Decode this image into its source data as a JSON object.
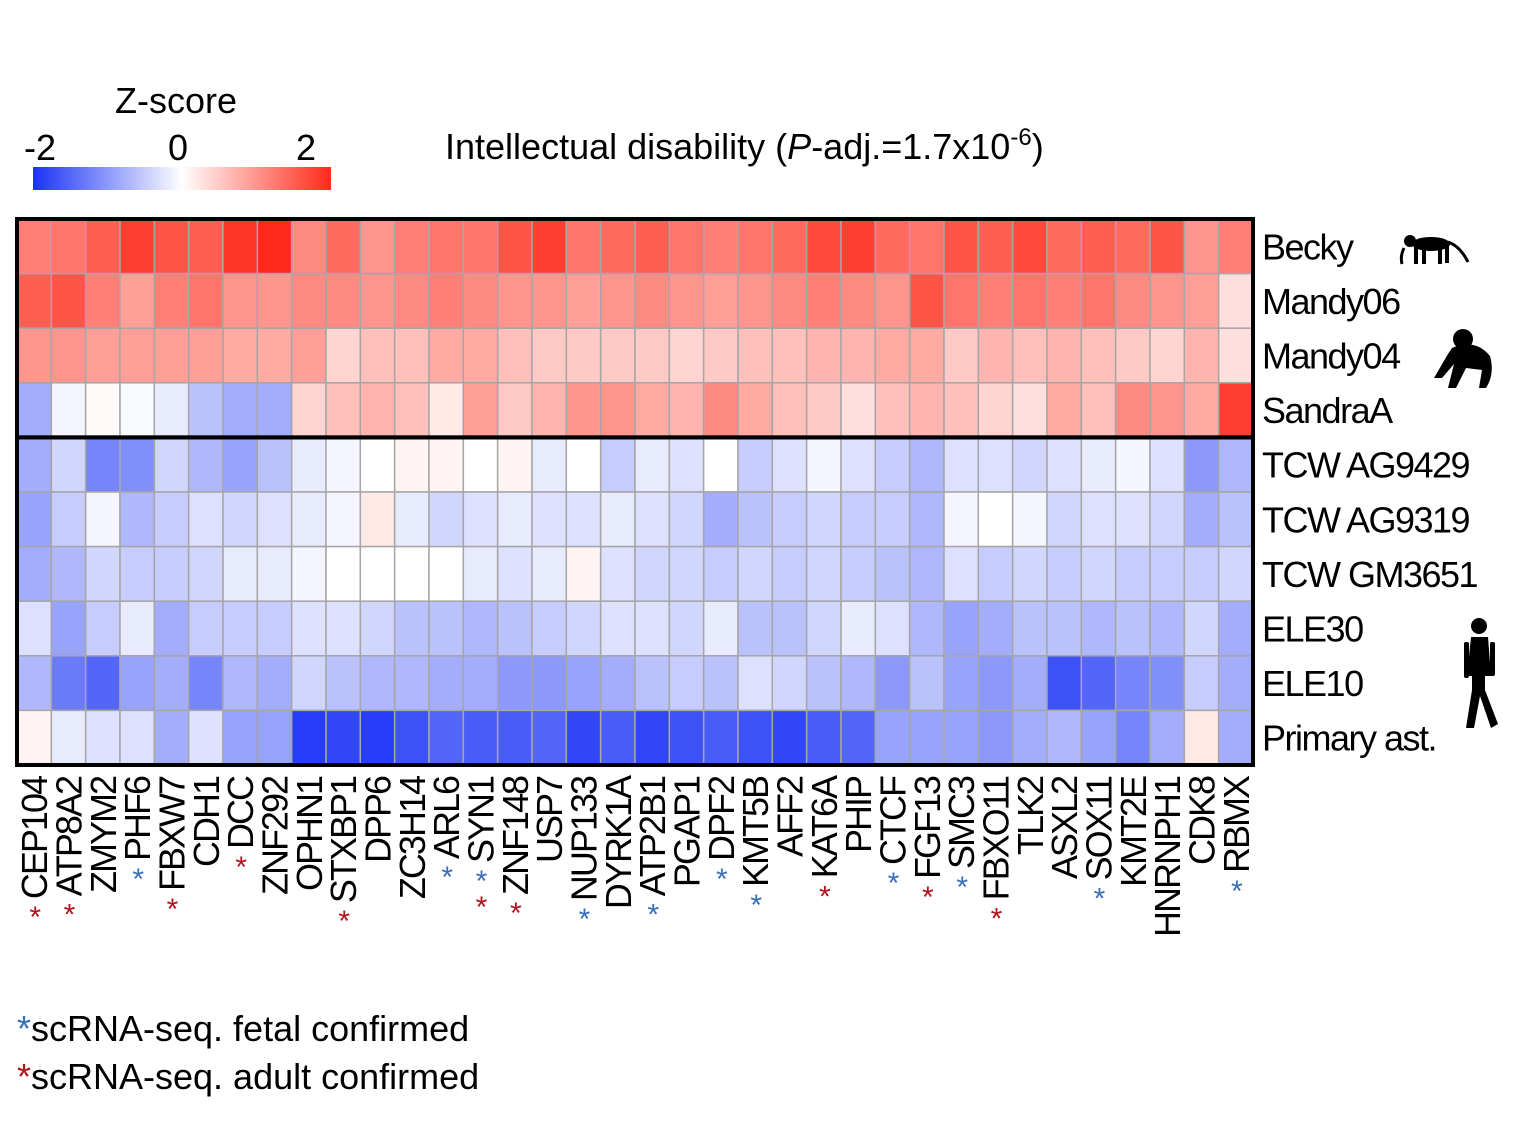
{
  "chart_data": {
    "type": "heatmap",
    "title_prefix": "Intellectual disability (",
    "title_p": "P",
    "title_mid": "-adj.=1.7x10",
    "title_sup": "-6",
    "title_suffix": ")",
    "colorbar": {
      "title": "Z-score",
      "ticks": [
        "-2",
        "0",
        "2"
      ],
      "range": [
        -2,
        2
      ],
      "colors": {
        "low": "#1a33f5",
        "mid": "#ffffff",
        "high": "#ff2a1a"
      }
    },
    "rows": [
      "Becky",
      "Mandy06",
      "Mandy04",
      "SandraA",
      "TCW AG9429",
      "TCW AG9319",
      "TCW GM3651",
      "ELE30",
      "ELE10",
      "Primary ast."
    ],
    "row_groups": [
      {
        "name": "monkey",
        "rows": [
          0,
          0
        ],
        "icon": "monkey-icon"
      },
      {
        "name": "chimpanzee",
        "rows": [
          1,
          3
        ],
        "icon": "chimpanzee-icon"
      },
      {
        "name": "human",
        "rows": [
          4,
          9
        ],
        "icon": "human-icon"
      }
    ],
    "columns": [
      "CEP104",
      "ATP8A2",
      "ZMYM2",
      "PHF6",
      "FBXW7",
      "CDH1",
      "DCC",
      "ZNF292",
      "OPHN1",
      "STXBP1",
      "DPP6",
      "ZC3H14",
      "ARL6",
      "SYN1",
      "ZNF148",
      "USP7",
      "NUP133",
      "DYRK1A",
      "ATP2B1",
      "PGAP1",
      "DPF2",
      "KMT5B",
      "AFF2",
      "KAT6A",
      "PHIP",
      "CTCF",
      "FGF13",
      "SMC3",
      "FBXO11",
      "TLK2",
      "ASXL2",
      "SOX11",
      "KMT2E",
      "HNRNPH1",
      "CDK8",
      "RBMX"
    ],
    "fetal_confirmed": [
      "PHF6",
      "ARL6",
      "SYN1",
      "NUP133",
      "ATP2B1",
      "DPF2",
      "KMT5B",
      "CTCF",
      "SMC3",
      "SOX11",
      "RBMX"
    ],
    "adult_confirmed": [
      "CEP104",
      "ATP8A2",
      "FBXW7",
      "DCC",
      "STXBP1",
      "SYN1",
      "ZNF148",
      "KAT6A",
      "FGF13",
      "FBXO11"
    ],
    "values": [
      [
        1.2,
        1.3,
        1.5,
        1.8,
        1.6,
        1.5,
        1.9,
        2.0,
        1.1,
        1.4,
        1.0,
        1.2,
        1.3,
        1.3,
        1.6,
        1.8,
        1.3,
        1.4,
        1.5,
        1.3,
        1.2,
        1.3,
        1.4,
        1.7,
        1.8,
        1.4,
        1.3,
        1.6,
        1.5,
        1.7,
        1.4,
        1.5,
        1.4,
        1.6,
        1.0,
        1.2
      ],
      [
        1.5,
        1.6,
        1.2,
        0.9,
        1.2,
        1.3,
        1.0,
        1.0,
        1.1,
        1.1,
        1.0,
        1.1,
        1.2,
        1.1,
        1.0,
        1.0,
        0.9,
        1.0,
        1.1,
        1.0,
        0.9,
        1.0,
        1.1,
        1.2,
        1.1,
        1.0,
        1.6,
        1.3,
        1.2,
        1.3,
        1.2,
        1.3,
        1.1,
        1.0,
        0.9,
        0.3
      ],
      [
        1.0,
        1.0,
        0.9,
        0.9,
        0.9,
        0.9,
        0.8,
        0.8,
        0.9,
        0.4,
        0.6,
        0.6,
        0.8,
        0.8,
        0.6,
        0.5,
        0.5,
        0.5,
        0.5,
        0.4,
        0.5,
        0.6,
        0.6,
        0.7,
        0.7,
        0.8,
        0.8,
        0.5,
        0.7,
        0.6,
        0.7,
        0.6,
        0.5,
        0.4,
        0.7,
        0.3
      ],
      [
        -0.8,
        -0.1,
        0.05,
        -0.05,
        -0.2,
        -0.6,
        -0.8,
        -0.8,
        0.4,
        0.6,
        0.7,
        0.6,
        0.2,
        0.9,
        0.5,
        0.7,
        1.0,
        1.0,
        0.8,
        0.7,
        1.1,
        0.8,
        0.6,
        0.5,
        0.3,
        0.6,
        0.7,
        0.6,
        0.4,
        0.3,
        0.8,
        0.6,
        1.1,
        1.0,
        0.8,
        1.8
      ],
      [
        -0.8,
        -0.4,
        -1.2,
        -1.1,
        -0.4,
        -0.7,
        -0.9,
        -0.6,
        -0.2,
        -0.1,
        0.0,
        0.1,
        0.1,
        0.0,
        0.1,
        -0.2,
        0.0,
        -0.5,
        -0.2,
        -0.3,
        0.0,
        -0.5,
        -0.3,
        -0.1,
        -0.3,
        -0.5,
        -0.7,
        -0.3,
        -0.3,
        -0.4,
        -0.3,
        -0.2,
        -0.1,
        -0.3,
        -1.0,
        -0.7
      ],
      [
        -0.9,
        -0.5,
        -0.1,
        -0.7,
        -0.5,
        -0.3,
        -0.4,
        -0.3,
        -0.2,
        -0.1,
        0.2,
        -0.2,
        -0.4,
        -0.3,
        -0.2,
        -0.3,
        -0.3,
        -0.2,
        -0.3,
        -0.4,
        -0.8,
        -0.6,
        -0.5,
        -0.4,
        -0.5,
        -0.5,
        -0.7,
        -0.1,
        0.0,
        -0.1,
        -0.4,
        -0.3,
        -0.3,
        -0.4,
        -0.8,
        -0.6
      ],
      [
        -0.8,
        -0.7,
        -0.4,
        -0.5,
        -0.5,
        -0.4,
        -0.2,
        -0.2,
        -0.1,
        0.0,
        0.0,
        0.0,
        0.0,
        -0.2,
        -0.3,
        -0.2,
        0.1,
        -0.3,
        -0.4,
        -0.4,
        -0.5,
        -0.4,
        -0.5,
        -0.4,
        -0.5,
        -0.6,
        -0.7,
        -0.3,
        -0.5,
        -0.4,
        -0.5,
        -0.4,
        -0.5,
        -0.5,
        -0.5,
        -0.4
      ],
      [
        -0.3,
        -0.9,
        -0.5,
        -0.2,
        -0.8,
        -0.5,
        -0.5,
        -0.5,
        -0.3,
        -0.3,
        -0.4,
        -0.6,
        -0.6,
        -0.7,
        -0.6,
        -0.5,
        -0.4,
        -0.3,
        -0.3,
        -0.4,
        -0.2,
        -0.6,
        -0.6,
        -0.4,
        -0.2,
        -0.3,
        -0.7,
        -0.9,
        -0.8,
        -0.6,
        -0.6,
        -0.7,
        -0.6,
        -0.7,
        -0.4,
        -0.8
      ],
      [
        -0.7,
        -1.3,
        -1.5,
        -0.9,
        -0.8,
        -1.2,
        -0.7,
        -0.8,
        -0.4,
        -0.6,
        -0.7,
        -0.7,
        -0.8,
        -0.8,
        -1.0,
        -1.0,
        -0.9,
        -0.8,
        -0.6,
        -0.5,
        -0.6,
        -0.3,
        -0.4,
        -0.6,
        -0.7,
        -1.0,
        -0.6,
        -0.9,
        -1.0,
        -0.8,
        -1.7,
        -1.5,
        -1.2,
        -1.1,
        -0.5,
        -0.8
      ],
      [
        0.1,
        -0.2,
        -0.3,
        -0.3,
        -0.8,
        -0.3,
        -0.9,
        -0.9,
        -1.9,
        -1.8,
        -1.9,
        -1.7,
        -1.5,
        -1.6,
        -1.6,
        -1.5,
        -1.8,
        -1.6,
        -1.8,
        -1.7,
        -1.6,
        -1.7,
        -1.8,
        -1.6,
        -1.5,
        -0.9,
        -0.9,
        -0.9,
        -1.0,
        -0.8,
        -0.7,
        -0.9,
        -1.2,
        -0.8,
        0.2,
        -0.8
      ]
    ]
  },
  "legend": {
    "star": "*",
    "fetal_text": "scRNA-seq. fetal confirmed",
    "adult_text": "scRNA-seq. adult confirmed",
    "fetal_color": "#3a6fb5",
    "adult_color": "#b0141c"
  }
}
